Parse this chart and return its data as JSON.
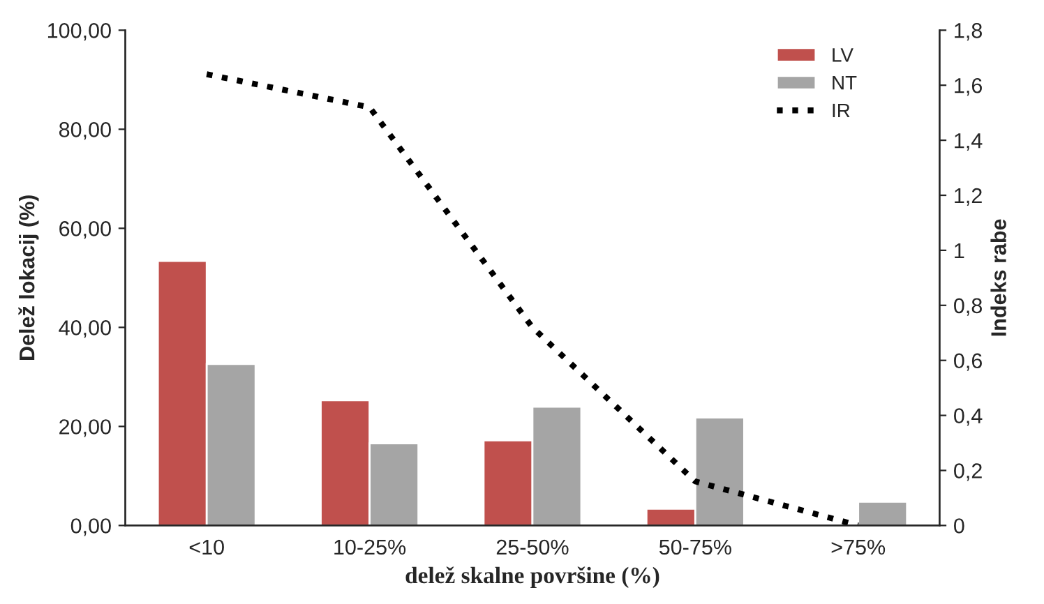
{
  "chart_data": {
    "type": "bar",
    "xlabel": "delež skalne površine (%)",
    "ylabel": "Delež lokacij (%)",
    "y2label": "Indeks rabe",
    "categories": [
      "<10",
      "10-25%",
      "25-50%",
      "50-75%",
      ">75%"
    ],
    "series": [
      {
        "name": "LV",
        "color": "#c0504d",
        "values": [
          53.4,
          25.3,
          17.2,
          3.4,
          null
        ]
      },
      {
        "name": "NT",
        "color": "#a5a5a5",
        "values": [
          32.6,
          16.6,
          24.0,
          21.8,
          4.8
        ]
      },
      {
        "name": "IR",
        "type": "line",
        "axis": "y2",
        "color": "#000000",
        "line_style": "dotted",
        "marker": "none",
        "values": [
          1.64,
          1.52,
          0.72,
          0.16,
          0
        ]
      }
    ],
    "ylim": [
      0,
      100
    ],
    "yticks": [
      {
        "value": 0,
        "label": "0,00"
      },
      {
        "value": 20,
        "label": "20,00"
      },
      {
        "value": 40,
        "label": "40,00"
      },
      {
        "value": 60,
        "label": "60,00"
      },
      {
        "value": 80,
        "label": "80,00"
      },
      {
        "value": 100,
        "label": "100,00"
      }
    ],
    "y2lim": [
      0,
      1.8
    ],
    "y2ticks": [
      0,
      {
        "value": 0.2,
        "label": "0,2"
      },
      {
        "value": 0.4,
        "label": "0,4"
      },
      {
        "value": 0.6,
        "label": "0,6"
      },
      {
        "value": 0.8,
        "label": "0,8"
      },
      1,
      {
        "value": 1.2,
        "label": "1,2"
      },
      {
        "value": 1.4,
        "label": "1,4"
      },
      {
        "value": 1.6,
        "label": "1,6"
      },
      {
        "value": 1.8,
        "label": "1,8"
      }
    ],
    "grid": false,
    "legend": "top right"
  }
}
